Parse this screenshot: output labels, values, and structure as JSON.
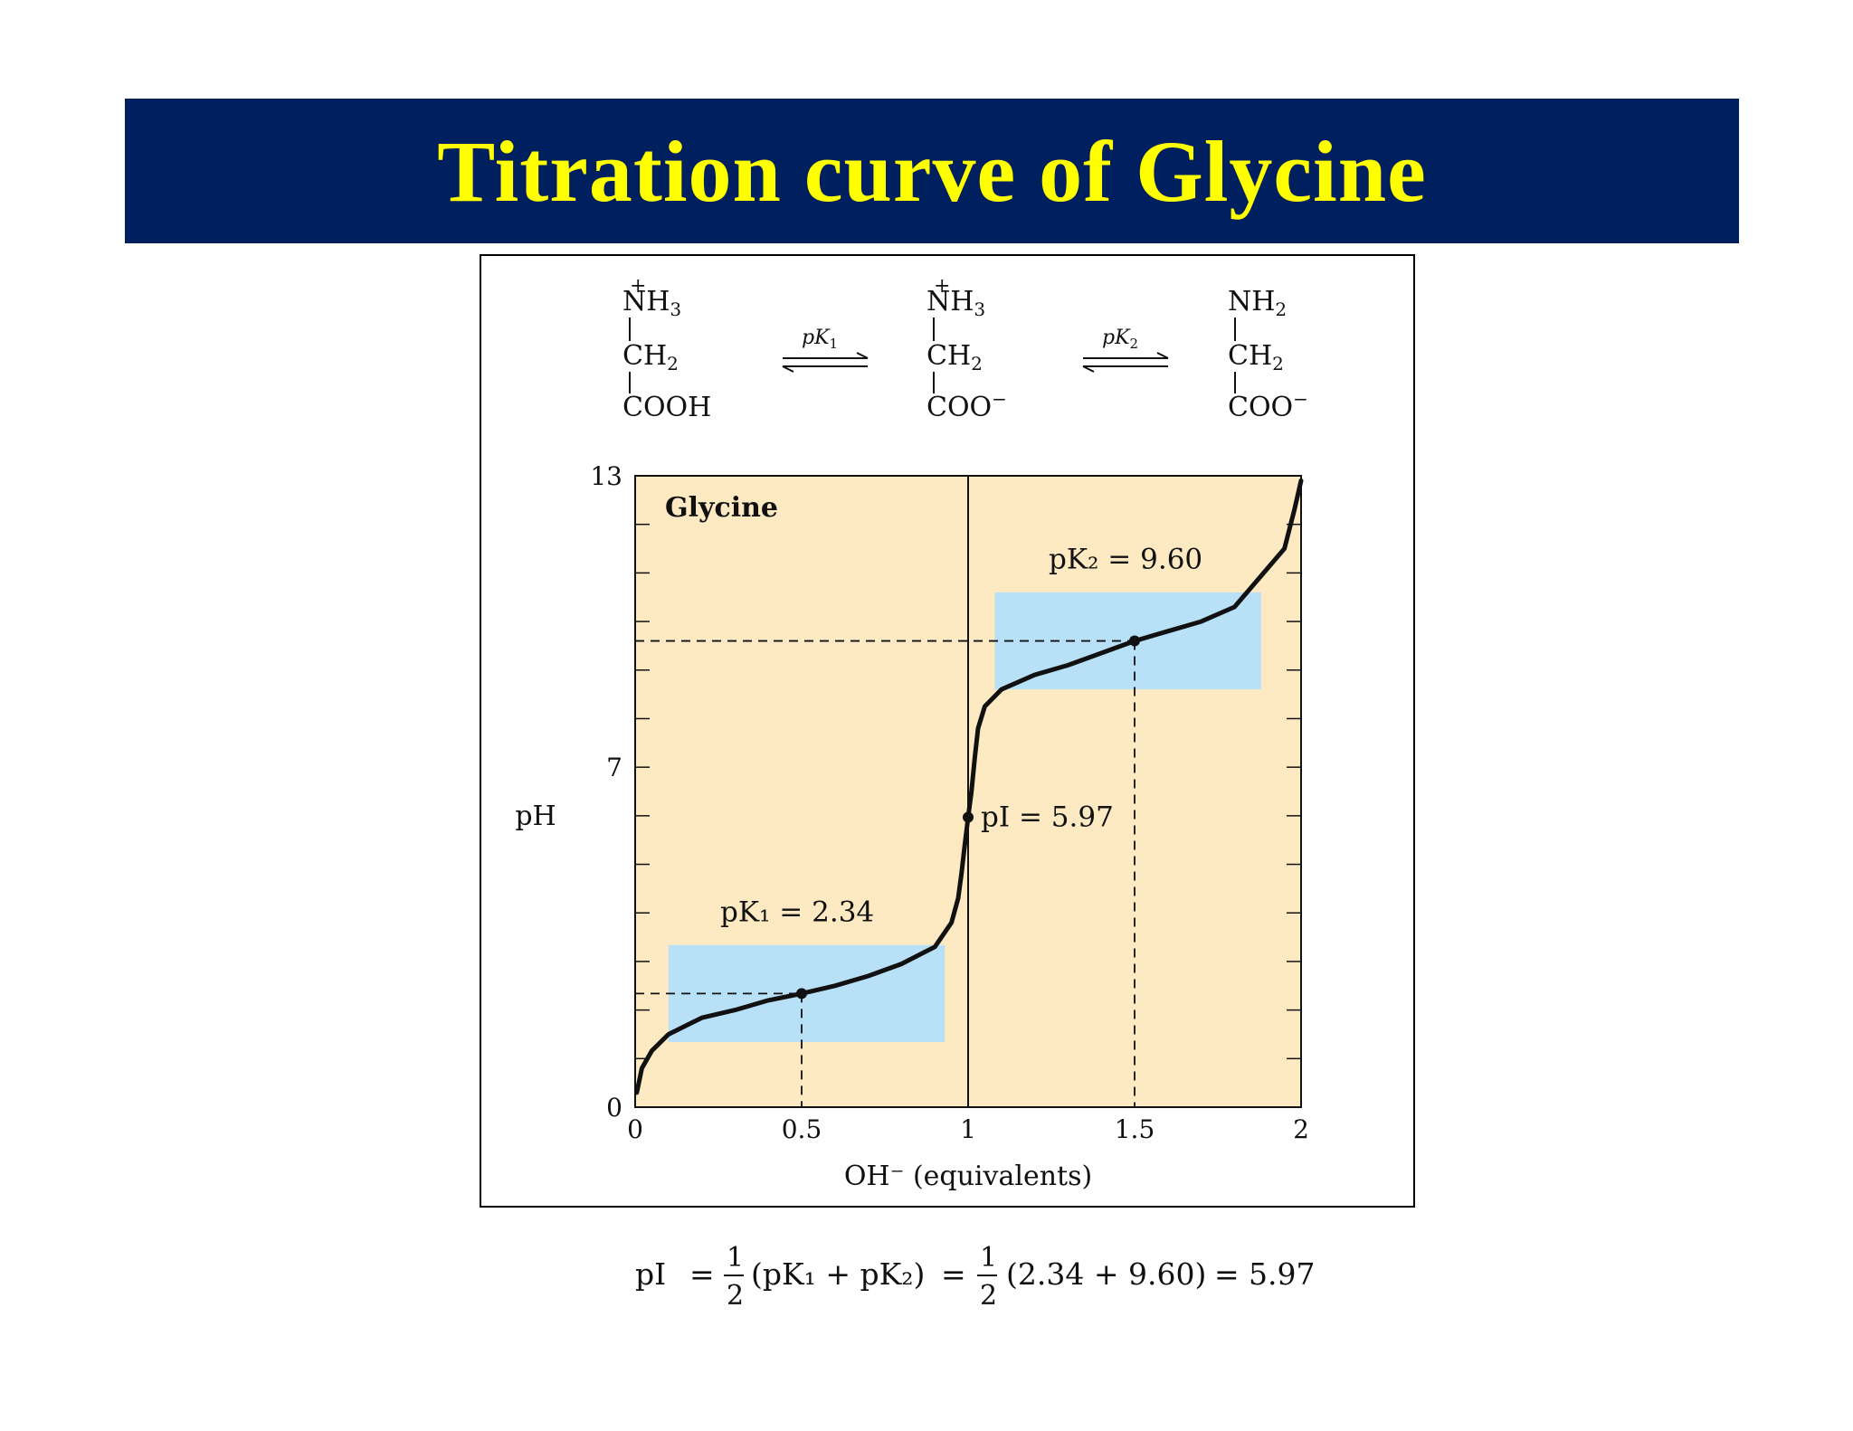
{
  "slide": {
    "title": "Titration curve of Glycine"
  },
  "reaction": {
    "species": [
      {
        "charge": "+",
        "top": "NH",
        "top_sub": "3",
        "mid": "CH",
        "mid_sub": "2",
        "bottom": "COOH",
        "bottom_sup": ""
      },
      {
        "charge": "+",
        "top": "NH",
        "top_sub": "3",
        "mid": "CH",
        "mid_sub": "2",
        "bottom": "COO",
        "bottom_sup": "−"
      },
      {
        "charge": "",
        "top": "NH",
        "top_sub": "2",
        "mid": "CH",
        "mid_sub": "2",
        "bottom": "COO",
        "bottom_sup": "−"
      }
    ],
    "arrows": [
      {
        "label": "pK",
        "label_sub": "1"
      },
      {
        "label": "pK",
        "label_sub": "2"
      }
    ]
  },
  "chart_data": {
    "type": "line",
    "title": "Glycine",
    "xlabel": "OH⁻ (equivalents)",
    "ylabel": "pH",
    "xlim": [
      0,
      2
    ],
    "ylim": [
      0,
      13
    ],
    "x_ticks": [
      "0",
      "0.5",
      "1",
      "1.5",
      "2"
    ],
    "x_tick_values": [
      0,
      0.5,
      1,
      1.5,
      2
    ],
    "y_ticks": [
      "0",
      "7",
      "13"
    ],
    "y_tick_values": [
      0,
      7,
      13
    ],
    "colors": {
      "background": "#fdeac2",
      "buffer_region": "#b8e1f7",
      "curve": "#111111"
    },
    "buffer_regions": [
      {
        "x": [
          0.1,
          0.93
        ],
        "y": [
          1.34,
          3.34
        ]
      },
      {
        "x": [
          1.08,
          1.88
        ],
        "y": [
          8.6,
          10.6
        ]
      }
    ],
    "series": [
      {
        "x": [
          0.005,
          0.02,
          0.05,
          0.1,
          0.2,
          0.3,
          0.4,
          0.5,
          0.6,
          0.7,
          0.8,
          0.9,
          0.95,
          0.97,
          0.98,
          0.99,
          1.0,
          1.01,
          1.02,
          1.03,
          1.05,
          1.1,
          1.2,
          1.3,
          1.4,
          1.5,
          1.6,
          1.7,
          1.8,
          1.85,
          1.9,
          1.95,
          1.98,
          2.0
        ],
        "y": [
          0.3,
          0.8,
          1.16,
          1.5,
          1.84,
          2.0,
          2.2,
          2.34,
          2.5,
          2.7,
          2.95,
          3.3,
          3.8,
          4.3,
          4.8,
          5.4,
          5.97,
          6.5,
          7.2,
          7.8,
          8.25,
          8.6,
          8.9,
          9.1,
          9.35,
          9.6,
          9.8,
          10.0,
          10.3,
          10.7,
          11.1,
          11.5,
          12.3,
          12.9
        ]
      }
    ],
    "key_points": [
      {
        "x": 0.5,
        "y": 2.34,
        "label": "pK₁ = 2.34"
      },
      {
        "x": 1.0,
        "y": 5.97,
        "label": "pI = 5.97"
      },
      {
        "x": 1.5,
        "y": 9.6,
        "label": "pK₂ = 9.60"
      }
    ]
  },
  "formula": {
    "lhs": "pI",
    "eq": "=",
    "half_num": "1",
    "half_den": "2",
    "sum_expr": "(pK₁ + pK₂)",
    "values_expr": "(2.34 + 9.60)",
    "result": "5.97"
  }
}
